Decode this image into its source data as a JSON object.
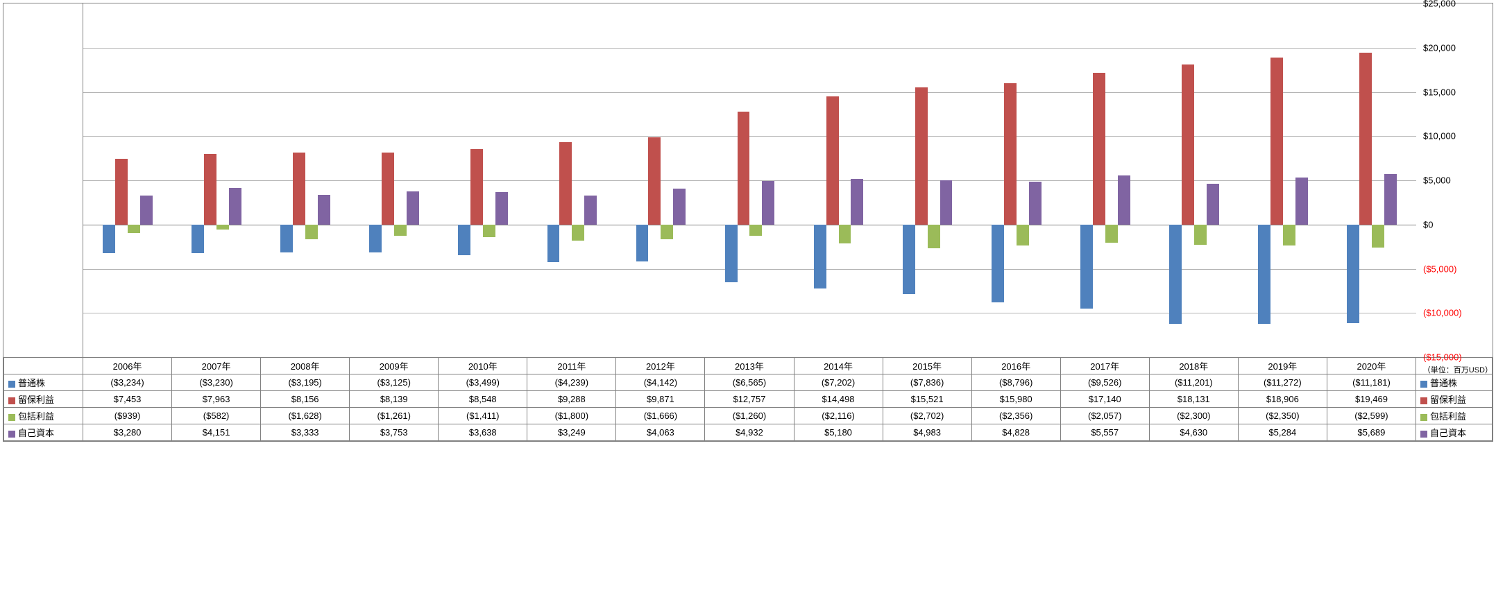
{
  "chart": {
    "type": "bar",
    "background_color": "#ffffff",
    "grid_color": "#b3b3b3",
    "border_color": "#808080",
    "axis_fontsize": 13,
    "unit_label": "（単位：百万USD）",
    "y": {
      "min": -15000,
      "max": 25000,
      "step": 5000,
      "ticks": [
        {
          "v": 25000,
          "label": "$25,000",
          "color": "#000000"
        },
        {
          "v": 20000,
          "label": "$20,000",
          "color": "#000000"
        },
        {
          "v": 15000,
          "label": "$15,000",
          "color": "#000000"
        },
        {
          "v": 10000,
          "label": "$10,000",
          "color": "#000000"
        },
        {
          "v": 5000,
          "label": "$5,000",
          "color": "#000000"
        },
        {
          "v": 0,
          "label": "$0",
          "color": "#000000"
        },
        {
          "v": -5000,
          "label": "($5,000)",
          "color": "#ff0000"
        },
        {
          "v": -10000,
          "label": "($10,000)",
          "color": "#ff0000"
        },
        {
          "v": -15000,
          "label": "($15,000)",
          "color": "#ff0000"
        }
      ]
    },
    "years": [
      "2006年",
      "2007年",
      "2008年",
      "2009年",
      "2010年",
      "2011年",
      "2012年",
      "2013年",
      "2014年",
      "2015年",
      "2016年",
      "2017年",
      "2018年",
      "2019年",
      "2020年"
    ],
    "series": [
      {
        "key": "common_stock",
        "name": "普通株",
        "color": "#4f81bd",
        "values": [
          -3234,
          -3230,
          -3195,
          -3125,
          -3499,
          -4239,
          -4142,
          -6565,
          -7202,
          -7836,
          -8796,
          -9526,
          -11201,
          -11272,
          -11181
        ],
        "labels": [
          "($3,234)",
          "($3,230)",
          "($3,195)",
          "($3,125)",
          "($3,499)",
          "($4,239)",
          "($4,142)",
          "($6,565)",
          "($7,202)",
          "($7,836)",
          "($8,796)",
          "($9,526)",
          "($11,201)",
          "($11,272)",
          "($11,181)"
        ]
      },
      {
        "key": "retained_earnings",
        "name": "留保利益",
        "color": "#c0504d",
        "values": [
          7453,
          7963,
          8156,
          8139,
          8548,
          9288,
          9871,
          12757,
          14498,
          15521,
          15980,
          17140,
          18131,
          18906,
          19469
        ],
        "labels": [
          "$7,453",
          "$7,963",
          "$8,156",
          "$8,139",
          "$8,548",
          "$9,288",
          "$9,871",
          "$12,757",
          "$14,498",
          "$15,521",
          "$15,980",
          "$17,140",
          "$18,131",
          "$18,906",
          "$19,469"
        ]
      },
      {
        "key": "comprehensive_income",
        "name": "包括利益",
        "color": "#9bbb59",
        "values": [
          -939,
          -582,
          -1628,
          -1261,
          -1411,
          -1800,
          -1666,
          -1260,
          -2116,
          -2702,
          -2356,
          -2057,
          -2300,
          -2350,
          -2599
        ],
        "labels": [
          "($939)",
          "($582)",
          "($1,628)",
          "($1,261)",
          "($1,411)",
          "($1,800)",
          "($1,666)",
          "($1,260)",
          "($2,116)",
          "($2,702)",
          "($2,356)",
          "($2,057)",
          "($2,300)",
          "($2,350)",
          "($2,599)"
        ]
      },
      {
        "key": "equity",
        "name": "自己資本",
        "color": "#8064a2",
        "values": [
          3280,
          4151,
          3333,
          3753,
          3638,
          3249,
          4063,
          4932,
          5180,
          4983,
          4828,
          5557,
          4630,
          5284,
          5689
        ],
        "labels": [
          "$3,280",
          "$4,151",
          "$3,333",
          "$3,753",
          "$3,638",
          "$3,249",
          "$4,063",
          "$4,932",
          "$5,180",
          "$4,983",
          "$4,828",
          "$5,557",
          "$4,630",
          "$5,284",
          "$5,689"
        ]
      }
    ],
    "bar_width_pct": 14,
    "group_gap_pct": 8
  }
}
